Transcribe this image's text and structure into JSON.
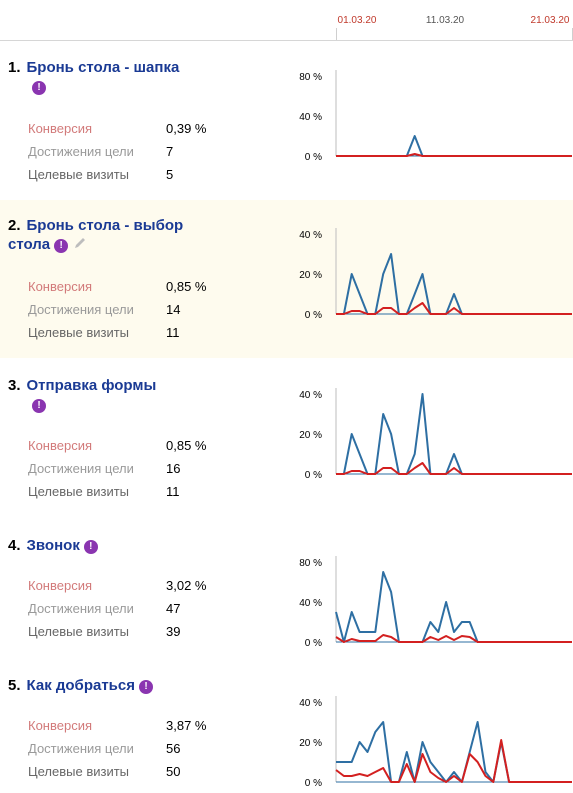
{
  "dates": [
    {
      "label": "01.03.20",
      "color": "#c0392b"
    },
    {
      "label": "11.03.20",
      "color": "#555555"
    },
    {
      "label": "21.03.20",
      "color": "#c0392b"
    }
  ],
  "metric_labels": {
    "conversion": "Конверсия",
    "achievements": "Достижения цели",
    "visits": "Целевые визиты"
  },
  "colors": {
    "link": "#1a3a94",
    "warning_icon": "#8a35b0",
    "series_achievements": "#2e6fa3",
    "series_visits": "#d32020",
    "highlight_bg": "#fefbee"
  },
  "goals": [
    {
      "number": "1.",
      "name": "Бронь стола - шапка",
      "warning": "!",
      "editable": false,
      "conversion": "0,39 %",
      "achievements": "7",
      "visits": "5",
      "chart_data": {
        "type": "line",
        "x": [
          "01.03.20",
          "02.03.20",
          "03.03.20",
          "04.03.20",
          "05.03.20",
          "06.03.20",
          "07.03.20",
          "08.03.20",
          "09.03.20",
          "10.03.20",
          "11.03.20",
          "12.03.20",
          "13.03.20",
          "14.03.20",
          "15.03.20",
          "16.03.20",
          "17.03.20",
          "18.03.20",
          "19.03.20",
          "20.03.20",
          "21.03.20",
          "22.03.20",
          "23.03.20",
          "24.03.20",
          "25.03.20",
          "26.03.20",
          "27.03.20",
          "28.03.20",
          "29.03.20",
          "30.03.20",
          "31.03.20"
        ],
        "ylim": [
          0,
          80
        ],
        "yticks": [
          "0 %",
          "40 %",
          "80 %"
        ],
        "series": [
          {
            "color": "#2e6fa3",
            "values": [
              0,
              0,
              0,
              0,
              0,
              0,
              0,
              0,
              0,
              0,
              20,
              0,
              0,
              0,
              0,
              0,
              0,
              0,
              0,
              0,
              0,
              0,
              0,
              0,
              0,
              0,
              0,
              0,
              0,
              0,
              0
            ]
          },
          {
            "color": "#d32020",
            "values": [
              0,
              0,
              0,
              0,
              0,
              0,
              0,
              0,
              0,
              0,
              2,
              0,
              0,
              0,
              0,
              0,
              0,
              0,
              0,
              0,
              0,
              0,
              0,
              0,
              0,
              0,
              0,
              0,
              0,
              0,
              0
            ]
          }
        ]
      }
    },
    {
      "number": "2.",
      "name": "Бронь стола - выбор стола",
      "warning": "!",
      "editable": true,
      "conversion": "0,85 %",
      "achievements": "14",
      "visits": "11",
      "chart_data": {
        "type": "line",
        "x": [
          "01.03.20",
          "02.03.20",
          "03.03.20",
          "04.03.20",
          "05.03.20",
          "06.03.20",
          "07.03.20",
          "08.03.20",
          "09.03.20",
          "10.03.20",
          "11.03.20",
          "12.03.20",
          "13.03.20",
          "14.03.20",
          "15.03.20",
          "16.03.20",
          "17.03.20",
          "18.03.20",
          "19.03.20",
          "20.03.20",
          "21.03.20",
          "22.03.20",
          "23.03.20",
          "24.03.20",
          "25.03.20",
          "26.03.20",
          "27.03.20",
          "28.03.20",
          "29.03.20",
          "30.03.20",
          "31.03.20"
        ],
        "ylim": [
          0,
          40
        ],
        "yticks": [
          "0 %",
          "20 %",
          "40 %"
        ],
        "series": [
          {
            "color": "#2e6fa3",
            "values": [
              0,
              0,
              20,
              10,
              0,
              0,
              20,
              30,
              0,
              0,
              10,
              20,
              0,
              0,
              0,
              10,
              0,
              0,
              0,
              0,
              0,
              0,
              0,
              0,
              0,
              0,
              0,
              0,
              0,
              0,
              0
            ]
          },
          {
            "color": "#d32020",
            "values": [
              0,
              0,
              1.5,
              1.5,
              0,
              0,
              3,
              3,
              0,
              0,
              3,
              5.5,
              0,
              0,
              0,
              3,
              0,
              0,
              0,
              0,
              0,
              0,
              0,
              0,
              0,
              0,
              0,
              0,
              0,
              0,
              0
            ]
          }
        ]
      }
    },
    {
      "number": "3.",
      "name": "Отправка формы",
      "warning": "!",
      "editable": false,
      "conversion": "0,85 %",
      "achievements": "16",
      "visits": "11",
      "chart_data": {
        "type": "line",
        "x": [
          "01.03.20",
          "02.03.20",
          "03.03.20",
          "04.03.20",
          "05.03.20",
          "06.03.20",
          "07.03.20",
          "08.03.20",
          "09.03.20",
          "10.03.20",
          "11.03.20",
          "12.03.20",
          "13.03.20",
          "14.03.20",
          "15.03.20",
          "16.03.20",
          "17.03.20",
          "18.03.20",
          "19.03.20",
          "20.03.20",
          "21.03.20",
          "22.03.20",
          "23.03.20",
          "24.03.20",
          "25.03.20",
          "26.03.20",
          "27.03.20",
          "28.03.20",
          "29.03.20",
          "30.03.20",
          "31.03.20"
        ],
        "ylim": [
          0,
          40
        ],
        "yticks": [
          "0 %",
          "20 %",
          "40 %"
        ],
        "series": [
          {
            "color": "#2e6fa3",
            "values": [
              0,
              0,
              20,
              10,
              0,
              0,
              30,
              20,
              0,
              0,
              10,
              40,
              0,
              0,
              0,
              10,
              0,
              0,
              0,
              0,
              0,
              0,
              0,
              0,
              0,
              0,
              0,
              0,
              0,
              0,
              0
            ]
          },
          {
            "color": "#d32020",
            "values": [
              0,
              0,
              1.5,
              1.5,
              0,
              0,
              3,
              3,
              0,
              0,
              3,
              5.5,
              0,
              0,
              0,
              3,
              0,
              0,
              0,
              0,
              0,
              0,
              0,
              0,
              0,
              0,
              0,
              0,
              0,
              0,
              0
            ]
          }
        ]
      }
    },
    {
      "number": "4.",
      "name": "Звонок",
      "warning": "!",
      "editable": false,
      "conversion": "3,02 %",
      "achievements": "47",
      "visits": "39",
      "chart_data": {
        "type": "line",
        "x": [
          "01.03.20",
          "02.03.20",
          "03.03.20",
          "04.03.20",
          "05.03.20",
          "06.03.20",
          "07.03.20",
          "08.03.20",
          "09.03.20",
          "10.03.20",
          "11.03.20",
          "12.03.20",
          "13.03.20",
          "14.03.20",
          "15.03.20",
          "16.03.20",
          "17.03.20",
          "18.03.20",
          "19.03.20",
          "20.03.20",
          "21.03.20",
          "22.03.20",
          "23.03.20",
          "24.03.20",
          "25.03.20",
          "26.03.20",
          "27.03.20",
          "28.03.20",
          "29.03.20",
          "30.03.20",
          "31.03.20"
        ],
        "ylim": [
          0,
          80
        ],
        "yticks": [
          "0 %",
          "40 %",
          "80 %"
        ],
        "series": [
          {
            "color": "#2e6fa3",
            "values": [
              30,
              0,
              30,
              10,
              10,
              10,
              70,
              50,
              0,
              0,
              0,
              0,
              20,
              10,
              40,
              10,
              20,
              20,
              0,
              0,
              0,
              0,
              0,
              0,
              0,
              0,
              0,
              0,
              0,
              0,
              0
            ]
          },
          {
            "color": "#d32020",
            "values": [
              5,
              0,
              3,
              1,
              1,
              1,
              7,
              5,
              0,
              0,
              0,
              0,
              5,
              2,
              6,
              2,
              6,
              5,
              0,
              0,
              0,
              0,
              0,
              0,
              0,
              0,
              0,
              0,
              0,
              0,
              0
            ]
          }
        ]
      }
    },
    {
      "number": "5.",
      "name": "Как добраться",
      "warning": "!",
      "editable": false,
      "conversion": "3,87 %",
      "achievements": "56",
      "visits": "50",
      "chart_data": {
        "type": "line",
        "x": [
          "01.03.20",
          "02.03.20",
          "03.03.20",
          "04.03.20",
          "05.03.20",
          "06.03.20",
          "07.03.20",
          "08.03.20",
          "09.03.20",
          "10.03.20",
          "11.03.20",
          "12.03.20",
          "13.03.20",
          "14.03.20",
          "15.03.20",
          "16.03.20",
          "17.03.20",
          "18.03.20",
          "19.03.20",
          "20.03.20",
          "21.03.20",
          "22.03.20",
          "23.03.20",
          "24.03.20",
          "25.03.20",
          "26.03.20",
          "27.03.20",
          "28.03.20",
          "29.03.20",
          "30.03.20",
          "31.03.20"
        ],
        "ylim": [
          0,
          40
        ],
        "yticks": [
          "0 %",
          "20 %",
          "40 %"
        ],
        "series": [
          {
            "color": "#2e6fa3",
            "values": [
              10,
              10,
              10,
              20,
              15,
              25,
              30,
              0,
              0,
              15,
              0,
              20,
              10,
              5,
              0,
              5,
              0,
              15,
              30,
              5,
              0,
              20,
              0,
              0,
              0,
              0,
              0,
              0,
              0,
              0,
              0
            ]
          },
          {
            "color": "#d32020",
            "values": [
              6,
              3,
              3,
              4,
              3,
              5,
              7,
              0,
              0,
              9,
              0,
              14,
              5,
              2,
              0,
              3,
              0,
              14,
              10,
              3,
              0,
              21,
              0,
              0,
              0,
              0,
              0,
              0,
              0,
              0,
              0
            ]
          }
        ]
      }
    }
  ]
}
